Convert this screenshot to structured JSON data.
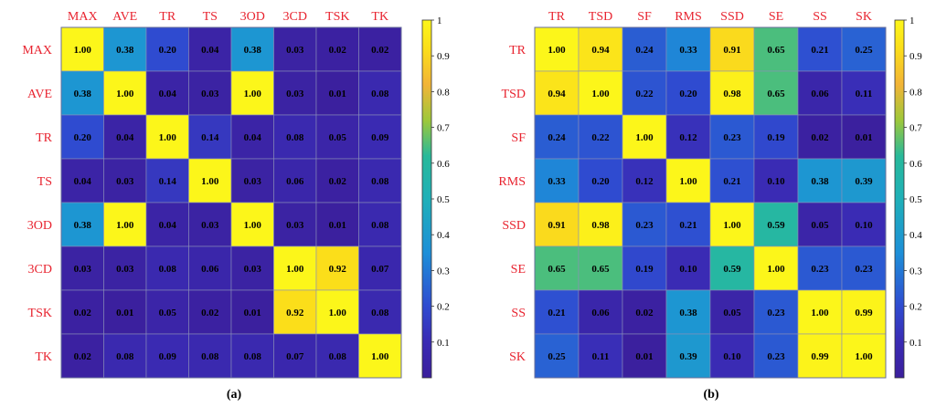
{
  "colorscale": [
    "#3b1f9c",
    "#2f4bd0",
    "#1d8fd8",
    "#28b99a",
    "#9ec83a",
    "#f2b437",
    "#fbde1a",
    "#fcf61a"
  ],
  "label_color": "#e8232f",
  "chart_data": [
    {
      "type": "heatmap",
      "caption": "(a)",
      "categories": [
        "MAX",
        "AVE",
        "TR",
        "TS",
        "3OD",
        "3CD",
        "TSK",
        "TK"
      ],
      "values": [
        [
          1.0,
          0.38,
          0.2,
          0.04,
          0.38,
          0.03,
          0.02,
          0.02
        ],
        [
          0.38,
          1.0,
          0.04,
          0.03,
          1.0,
          0.03,
          0.01,
          0.08
        ],
        [
          0.2,
          0.04,
          1.0,
          0.14,
          0.04,
          0.08,
          0.05,
          0.09
        ],
        [
          0.04,
          0.03,
          0.14,
          1.0,
          0.03,
          0.06,
          0.02,
          0.08
        ],
        [
          0.38,
          1.0,
          0.04,
          0.03,
          1.0,
          0.03,
          0.01,
          0.08
        ],
        [
          0.03,
          0.03,
          0.08,
          0.06,
          0.03,
          1.0,
          0.92,
          0.07
        ],
        [
          0.02,
          0.01,
          0.05,
          0.02,
          0.01,
          0.92,
          1.0,
          0.08
        ],
        [
          0.02,
          0.08,
          0.09,
          0.08,
          0.08,
          0.07,
          0.08,
          1.0
        ]
      ],
      "colorbar": {
        "range": [
          0,
          1
        ],
        "ticks": [
          "1",
          "0.9",
          "0.8",
          "0.7",
          "0.6",
          "0.5",
          "0.4",
          "0.3",
          "0.2",
          "0.1"
        ],
        "tick_values": [
          1,
          0.9,
          0.8,
          0.7,
          0.6,
          0.5,
          0.4,
          0.3,
          0.2,
          0.1
        ]
      }
    },
    {
      "type": "heatmap",
      "caption": "(b)",
      "categories": [
        "TR",
        "TSD",
        "SF",
        "RMS",
        "SSD",
        "SE",
        "SS",
        "SK"
      ],
      "values": [
        [
          1.0,
          0.94,
          0.24,
          0.33,
          0.91,
          0.65,
          0.21,
          0.25
        ],
        [
          0.94,
          1.0,
          0.22,
          0.2,
          0.98,
          0.65,
          0.06,
          0.11
        ],
        [
          0.24,
          0.22,
          1.0,
          0.12,
          0.23,
          0.19,
          0.02,
          0.01
        ],
        [
          0.33,
          0.2,
          0.12,
          1.0,
          0.21,
          0.1,
          0.38,
          0.39
        ],
        [
          0.91,
          0.98,
          0.23,
          0.21,
          1.0,
          0.59,
          0.05,
          0.1
        ],
        [
          0.65,
          0.65,
          0.19,
          0.1,
          0.59,
          1.0,
          0.23,
          0.23
        ],
        [
          0.21,
          0.06,
          0.02,
          0.38,
          0.05,
          0.23,
          1.0,
          0.99
        ],
        [
          0.25,
          0.11,
          0.01,
          0.39,
          0.1,
          0.23,
          0.99,
          1.0
        ]
      ],
      "colorbar": {
        "range": [
          0,
          1
        ],
        "ticks": [
          "1",
          "0.9",
          "0.8",
          "0.7",
          "0.6",
          "0.5",
          "0.4",
          "0.3",
          "0.2",
          "0.1"
        ],
        "tick_values": [
          1,
          0.9,
          0.8,
          0.7,
          0.6,
          0.5,
          0.4,
          0.3,
          0.2,
          0.1
        ]
      }
    }
  ]
}
